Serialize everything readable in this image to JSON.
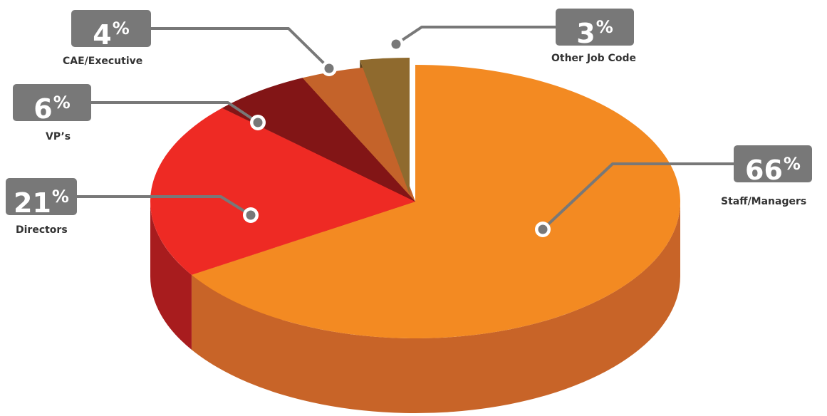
{
  "chart_data": {
    "type": "pie",
    "categories": [
      "Staff/Managers",
      "Directors",
      "VP’s",
      "CAE/Executive",
      "Other Job Code"
    ],
    "values": [
      66,
      21,
      6,
      4,
      3
    ],
    "data_labels": [
      "66",
      "21",
      "6",
      "4",
      "3"
    ],
    "percent_sign": "%",
    "colors": [
      "#F38A22",
      "#EE2A24",
      "#821516",
      "#C4632A",
      "#8F6A2E"
    ],
    "side_colors": [
      "#C86428",
      "#A81C1E",
      "#5C0B0D",
      "#8E4320",
      "#5E4218"
    ],
    "exploded": [
      "Other Job Code"
    ],
    "style": "3d"
  }
}
